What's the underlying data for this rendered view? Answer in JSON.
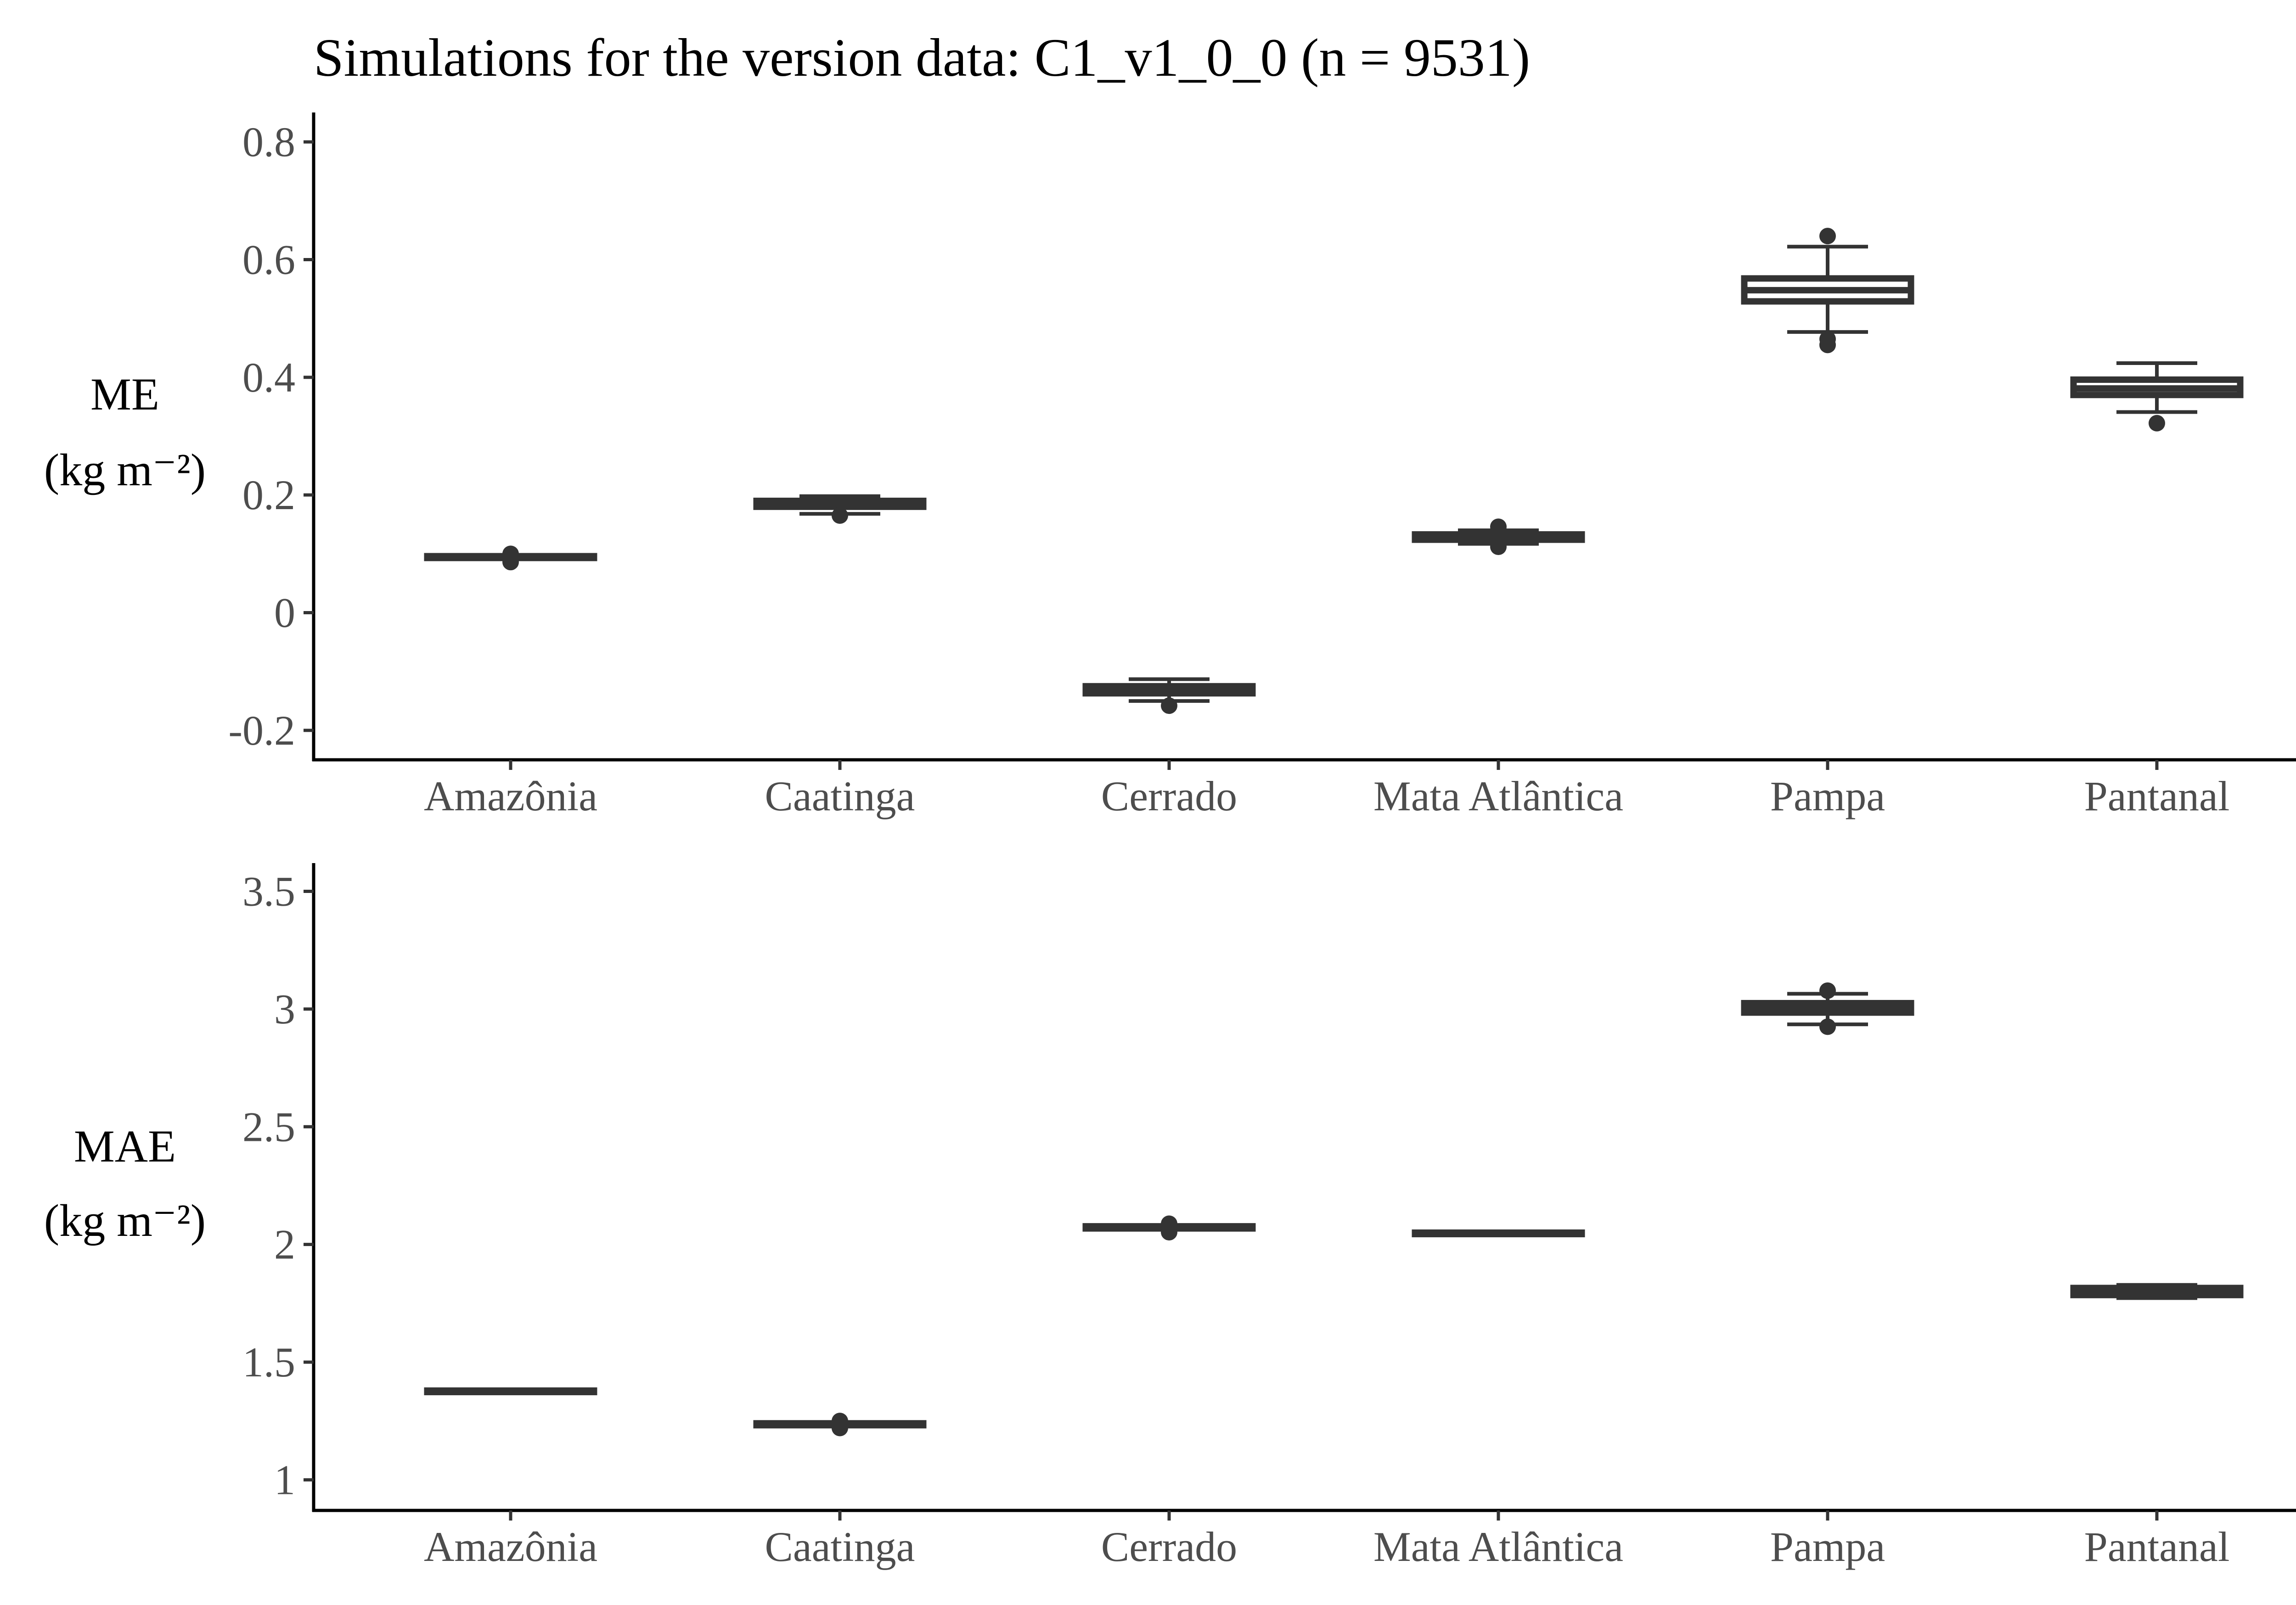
{
  "title": "Simulations for the version data: C1_v1_0_0 (n = 9531)",
  "colors": {
    "box": "#333333",
    "axis": "#000000",
    "tick_text": "#4d4d4d",
    "background": "#ffffff"
  },
  "chart_data": [
    {
      "type": "boxplot",
      "ylabel": [
        "ME",
        "(kg m⁻²)"
      ],
      "ylim": [
        -0.25,
        0.85
      ],
      "yticks": [
        -0.2,
        0,
        0.2,
        0.4,
        0.6,
        0.8
      ],
      "ytick_labels": [
        "-0.2",
        "0",
        "0.2",
        "0.4",
        "0.6",
        "0.8"
      ],
      "categories": [
        "Amazônia",
        "Caatinga",
        "Cerrado",
        "Mata Atlântica",
        "Pampa",
        "Pantanal"
      ],
      "boxes": [
        {
          "category": "Amazônia",
          "whisker_low": 0.092,
          "q1": 0.093,
          "median": 0.094,
          "q3": 0.096,
          "whisker_high": 0.098,
          "outliers": [
            0.086,
            0.1
          ]
        },
        {
          "category": "Caatinga",
          "whisker_low": 0.168,
          "q1": 0.18,
          "median": 0.184,
          "q3": 0.19,
          "whisker_high": 0.198,
          "outliers": [
            0.165
          ]
        },
        {
          "category": "Cerrado",
          "whisker_low": -0.15,
          "q1": -0.137,
          "median": -0.131,
          "q3": -0.125,
          "whisker_high": -0.113,
          "outliers": [
            -0.158
          ]
        },
        {
          "category": "Mata Atlântica",
          "whisker_low": 0.117,
          "q1": 0.124,
          "median": 0.128,
          "q3": 0.133,
          "whisker_high": 0.14,
          "outliers": [
            0.112,
            0.146
          ]
        },
        {
          "category": "Pampa",
          "whisker_low": 0.477,
          "q1": 0.529,
          "median": 0.548,
          "q3": 0.568,
          "whisker_high": 0.622,
          "outliers": [
            0.455,
            0.465,
            0.64
          ]
        },
        {
          "category": "Pantanal",
          "whisker_low": 0.341,
          "q1": 0.37,
          "median": 0.381,
          "q3": 0.396,
          "whisker_high": 0.424,
          "outliers": [
            0.322
          ]
        }
      ]
    },
    {
      "type": "boxplot",
      "ylabel": [
        "MAE",
        "(kg m⁻²)"
      ],
      "ylim": [
        0.87,
        3.62
      ],
      "yticks": [
        1,
        1.5,
        2,
        2.5,
        3,
        3.5
      ],
      "ytick_labels": [
        "1",
        "1.5",
        "2",
        "2.5",
        "3",
        "3.5"
      ],
      "categories": [
        "Amazônia",
        "Caatinga",
        "Cerrado",
        "Mata Atlântica",
        "Pampa",
        "Pantanal"
      ],
      "boxes": [
        {
          "category": "Amazônia",
          "whisker_low": 1.371,
          "q1": 1.373,
          "median": 1.376,
          "q3": 1.379,
          "whisker_high": 1.381,
          "outliers": []
        },
        {
          "category": "Caatinga",
          "whisker_low": 1.229,
          "q1": 1.232,
          "median": 1.236,
          "q3": 1.24,
          "whisker_high": 1.243,
          "outliers": [
            1.22,
            1.25
          ]
        },
        {
          "category": "Cerrado",
          "whisker_low": 2.066,
          "q1": 2.068,
          "median": 2.072,
          "q3": 2.077,
          "whisker_high": 2.08,
          "outliers": [
            2.052,
            2.088
          ]
        },
        {
          "category": "Mata Atlântica",
          "whisker_low": 2.042,
          "q1": 2.044,
          "median": 2.047,
          "q3": 2.05,
          "whisker_high": 2.052,
          "outliers": []
        },
        {
          "category": "Pampa",
          "whisker_low": 2.935,
          "q1": 2.985,
          "median": 3.005,
          "q3": 3.025,
          "whisker_high": 3.065,
          "outliers": [
            2.925,
            3.078
          ]
        },
        {
          "category": "Pantanal",
          "whisker_low": 1.772,
          "q1": 1.785,
          "median": 1.8,
          "q3": 1.815,
          "whisker_high": 1.828,
          "outliers": []
        }
      ]
    }
  ]
}
